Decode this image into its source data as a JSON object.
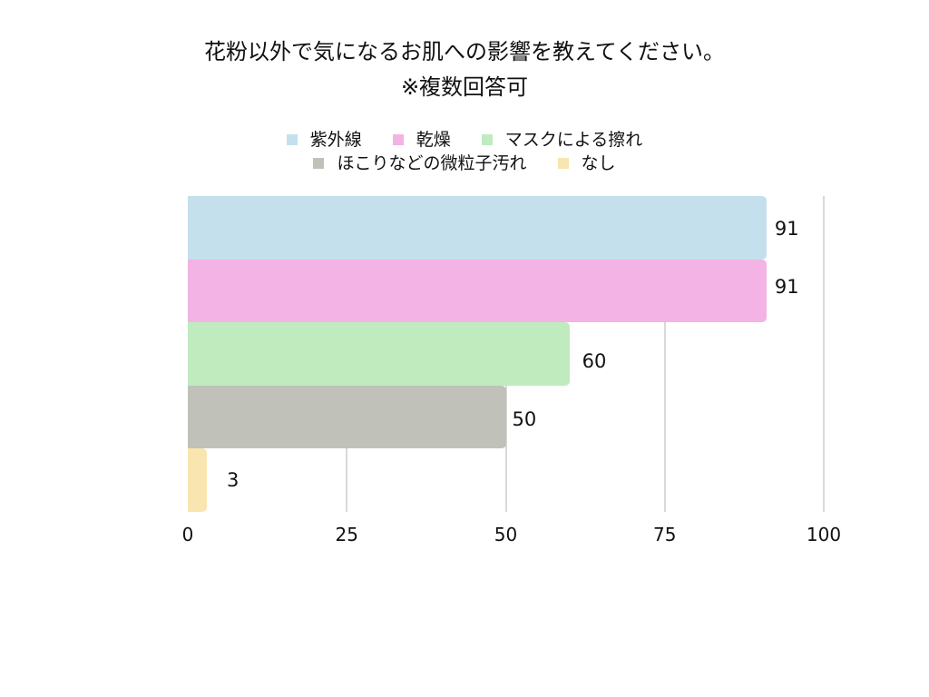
{
  "chart_data": {
    "type": "bar",
    "orientation": "horizontal",
    "title": "花粉以外で気になるお肌への影響を教えてください。",
    "subtitle": "※複数回答可",
    "categories": [
      "紫外線",
      "乾燥",
      "マスクによる擦れ",
      "ほこりなどの微粒子汚れ",
      "なし"
    ],
    "values": [
      91,
      91,
      60,
      50,
      3
    ],
    "colors": [
      "#c4e0ec",
      "#f3b3e5",
      "#c0ebbf",
      "#c0c1b9",
      "#f9e5b0"
    ],
    "xlabel": "",
    "ylabel": "",
    "xlim": [
      0,
      100
    ],
    "xticks": [
      "0",
      "25",
      "50",
      "75",
      "100"
    ],
    "grid": true,
    "legend_position": "top",
    "data_labels": [
      "91",
      "91",
      "60",
      "50",
      "3"
    ]
  },
  "legend": {
    "row1": [
      "紫外線",
      "乾燥",
      "マスクによる擦れ"
    ],
    "row2": [
      "ほこりなどの微粒子汚れ",
      "なし"
    ]
  }
}
